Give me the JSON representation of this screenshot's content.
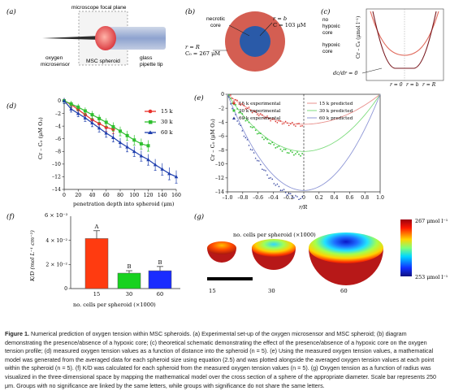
{
  "panels": {
    "a": {
      "letter": "(a)",
      "focal_plane": "microscope focal plane",
      "oxygen_sensor": [
        "oxygen",
        "microsensor"
      ],
      "spheroid": "MSC spheroid",
      "pipette": [
        "glass",
        "pipette tip"
      ]
    },
    "b": {
      "letter": "(b)",
      "necrotic": [
        "necrotic",
        "core"
      ],
      "r_b": "r = b",
      "c_b": "C = 103 μM",
      "r_R": "r = R",
      "c_0": "C₀ = 267 μM"
    },
    "c": {
      "letter": "(c)",
      "no_hypoxic": [
        "no",
        "hypoxic",
        "core"
      ],
      "hypoxic": [
        "hypoxic",
        "core"
      ],
      "ylabel": "Cr – C₀ (μmol l⁻¹)",
      "dcdr": "dc/dr = 0",
      "r_labels": [
        "r = 0",
        "r = b",
        "r = R"
      ]
    },
    "d": {
      "letter": "(d)",
      "ylabel": "Cr – C₀ (μM O₂)",
      "xlabel": "penetration depth into spheroid (μm)",
      "legend": [
        "15 k",
        "30 k",
        "60 k"
      ],
      "xticks": [
        "0",
        "20",
        "40",
        "60",
        "80",
        "100",
        "120",
        "140",
        "160"
      ],
      "yticks": [
        "0",
        "–2",
        "–4",
        "–6",
        "–8",
        "–10",
        "–12",
        "–14"
      ]
    },
    "e": {
      "letter": "(e)",
      "ylabel": "Cr – C₀ (μM O₂)",
      "xlabel": "r/R",
      "legend_exp": [
        "15 k experimental",
        "30 k experimental",
        "60 k experimental"
      ],
      "legend_pred": [
        "15 k predicted",
        "30 k predicted",
        "60 k predicted"
      ],
      "xticks": [
        "–1.0",
        "–0.8",
        "–0.6",
        "–0.4",
        "–0.2",
        "0",
        "0.2",
        "0.4",
        "0.6",
        "0.8",
        "1.0"
      ],
      "yticks": [
        "0",
        "–2",
        "–4",
        "–6",
        "–8",
        "–10",
        "–12",
        "–14"
      ]
    },
    "f": {
      "letter": "(f)",
      "scale": "6 × 10⁻²",
      "ylabel": "K/D (mol L⁻¹ cm⁻²)",
      "yticks": [
        "4 × 10⁻²",
        "2 × 10⁻²",
        "0"
      ],
      "categories": [
        "15",
        "30",
        "60"
      ],
      "sig": [
        "A",
        "B",
        "B"
      ],
      "xlabel": "no. cells per spheroid (×1000)"
    },
    "g": {
      "letter": "(g)",
      "cb_top": "267 μmol l⁻¹",
      "cb_bottom": "253 μmol l⁻¹",
      "labels": [
        "15",
        "30",
        "60"
      ],
      "xlabel": "no. cells per spheroid (×1000)"
    }
  },
  "chart_data": [
    {
      "type": "line",
      "panel": "d",
      "xlabel": "penetration depth into spheroid (μm)",
      "ylabel": "Cr – C₀ (μM O₂)",
      "xlim": [
        0,
        160
      ],
      "ylim": [
        -14,
        0
      ],
      "series": [
        {
          "name": "15 k",
          "color": "#e8302a",
          "x": [
            0,
            10,
            20,
            30,
            40,
            50,
            60,
            70
          ],
          "y": [
            0,
            -0.6,
            -1.4,
            -2.2,
            -3.0,
            -3.6,
            -4.2,
            -4.5
          ]
        },
        {
          "name": "30 k",
          "color": "#2fbf2f",
          "x": [
            0,
            10,
            20,
            30,
            40,
            50,
            60,
            70,
            80,
            90,
            100,
            110,
            120
          ],
          "y": [
            0,
            -0.5,
            -1.0,
            -1.6,
            -2.2,
            -2.8,
            -3.4,
            -4.1,
            -4.8,
            -5.5,
            -6.2,
            -6.8,
            -7.1
          ]
        },
        {
          "name": "60 k",
          "color": "#1f3fae",
          "x": [
            0,
            10,
            20,
            30,
            40,
            50,
            60,
            70,
            80,
            90,
            100,
            110,
            120,
            130,
            140,
            150,
            160
          ],
          "y": [
            0,
            -1.3,
            -2.0,
            -2.7,
            -3.5,
            -4.3,
            -5.1,
            -5.8,
            -6.6,
            -7.3,
            -8.0,
            -8.7,
            -9.3,
            -10.1,
            -10.8,
            -11.5,
            -12.0
          ]
        }
      ]
    },
    {
      "type": "line",
      "panel": "e",
      "xlabel": "r/R",
      "ylabel": "Cr – C₀ (μM O₂)",
      "xlim": [
        -1,
        1
      ],
      "ylim": [
        -14,
        0
      ],
      "series": [
        {
          "name": "15 k predicted",
          "color": "#e9908c",
          "min": -4.3
        },
        {
          "name": "30 k predicted",
          "color": "#7fdc7f",
          "min": -8.2
        },
        {
          "name": "60 k predicted",
          "color": "#8e97d6",
          "min": -13.8
        }
      ]
    },
    {
      "type": "bar",
      "panel": "f",
      "xlabel": "no. cells per spheroid (×1000)",
      "ylabel": "K/D (mol L⁻¹ cm⁻²)",
      "categories": [
        "15",
        "30",
        "60"
      ],
      "values": [
        0.0415,
        0.0128,
        0.0148
      ],
      "errors": [
        0.0065,
        0.002,
        0.0035
      ],
      "colors": [
        "#ff3b10",
        "#17d21f",
        "#1a2cff"
      ],
      "ylim": [
        0,
        0.06
      ]
    }
  ],
  "caption": {
    "label": "Figure 1.",
    "text": " Numerical prediction of oxygen tension within MSC spheroids. (a) Experimental set-up of the oxygen microsensor and MSC spheroid; (b) diagram demonstrating the presence/absence of a hypoxic core; (c) theoretical schematic demonstrating the effect of the presence/absence of a hypoxic core on the oxygen tension profile; (d) measured oxygen tension values as a function of distance into the spheroid (n = 5). (e) Using the measured oxygen tension values, a mathematical model was generated from the averaged data for each spheroid size using equation (2.5) and was plotted alongside the averaged oxygen tension values at each point within the spheroid (n = 5). (f) K/D was calculated for each spheroid from the measured oxygen tension values (n = 5). (g) Oxygen tension as a function of radius was visualized in the three-dimensional space by mapping the mathematical model over the cross section of a sphere of the appropriate diameter. Scale bar represents 250 μm. Groups with no significance are linked by the same letters, while groups with significance do not share the same letters."
  }
}
